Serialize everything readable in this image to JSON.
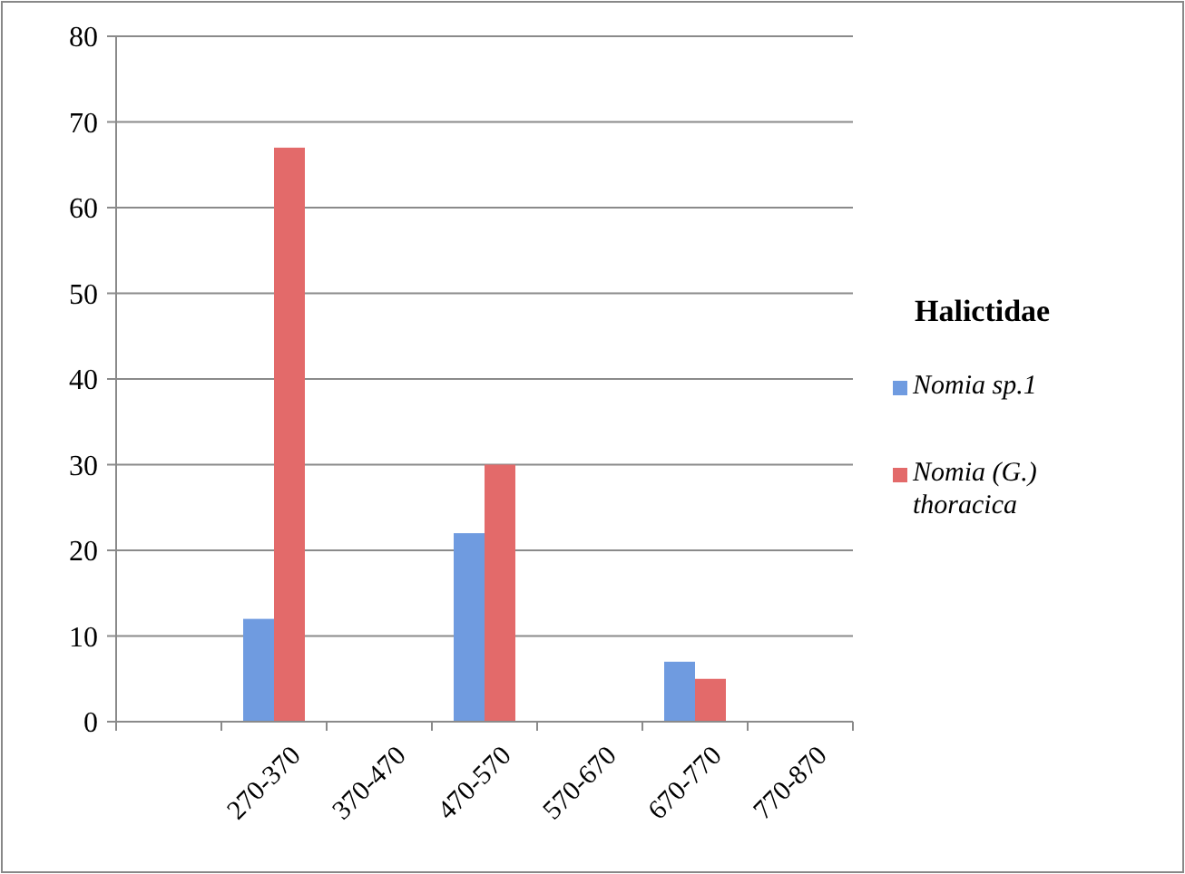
{
  "chart_data": {
    "type": "bar",
    "legend_title": "Halictidae",
    "categories": [
      null,
      "270-370",
      "370-470",
      "470-570",
      "570-670",
      "670-770",
      "770-870"
    ],
    "series": [
      {
        "name": "Nomia sp.1",
        "color": "#6f9be0",
        "values": [
          null,
          12,
          null,
          22,
          null,
          7,
          null
        ]
      },
      {
        "name": "Nomia (G.) thoracica",
        "color": "#e36a6a",
        "values": [
          null,
          67,
          null,
          30,
          null,
          5,
          null
        ]
      }
    ],
    "ylim": [
      0,
      80
    ],
    "yticks": [
      0,
      10,
      20,
      30,
      40,
      50,
      60,
      70,
      80
    ],
    "grid": "y",
    "legend": "right"
  }
}
